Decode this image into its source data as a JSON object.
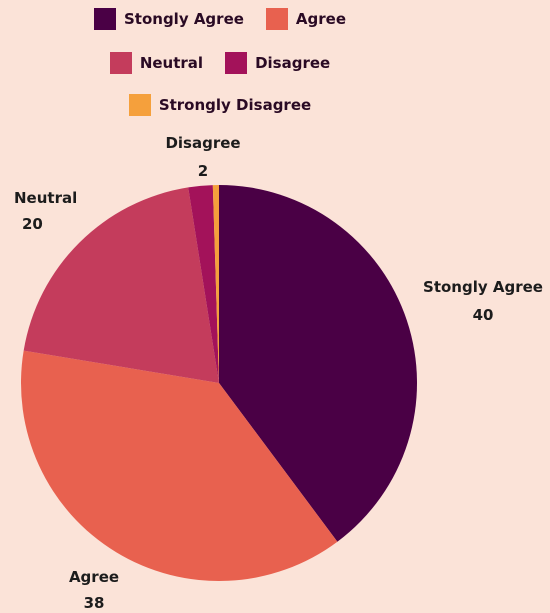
{
  "chart_data": {
    "type": "pie",
    "categories": [
      "Stongly Agree",
      "Agree",
      "Neutral",
      "Disagree",
      "Strongly Disagree"
    ],
    "values": [
      40,
      38,
      20,
      2,
      0.5
    ],
    "value_labels": [
      "40",
      "38",
      "20",
      "2",
      ""
    ],
    "colors": [
      "#4a0045",
      "#e8614f",
      "#c43c5c",
      "#a3125a",
      "#f5a03c"
    ],
    "legend_position": "top"
  }
}
